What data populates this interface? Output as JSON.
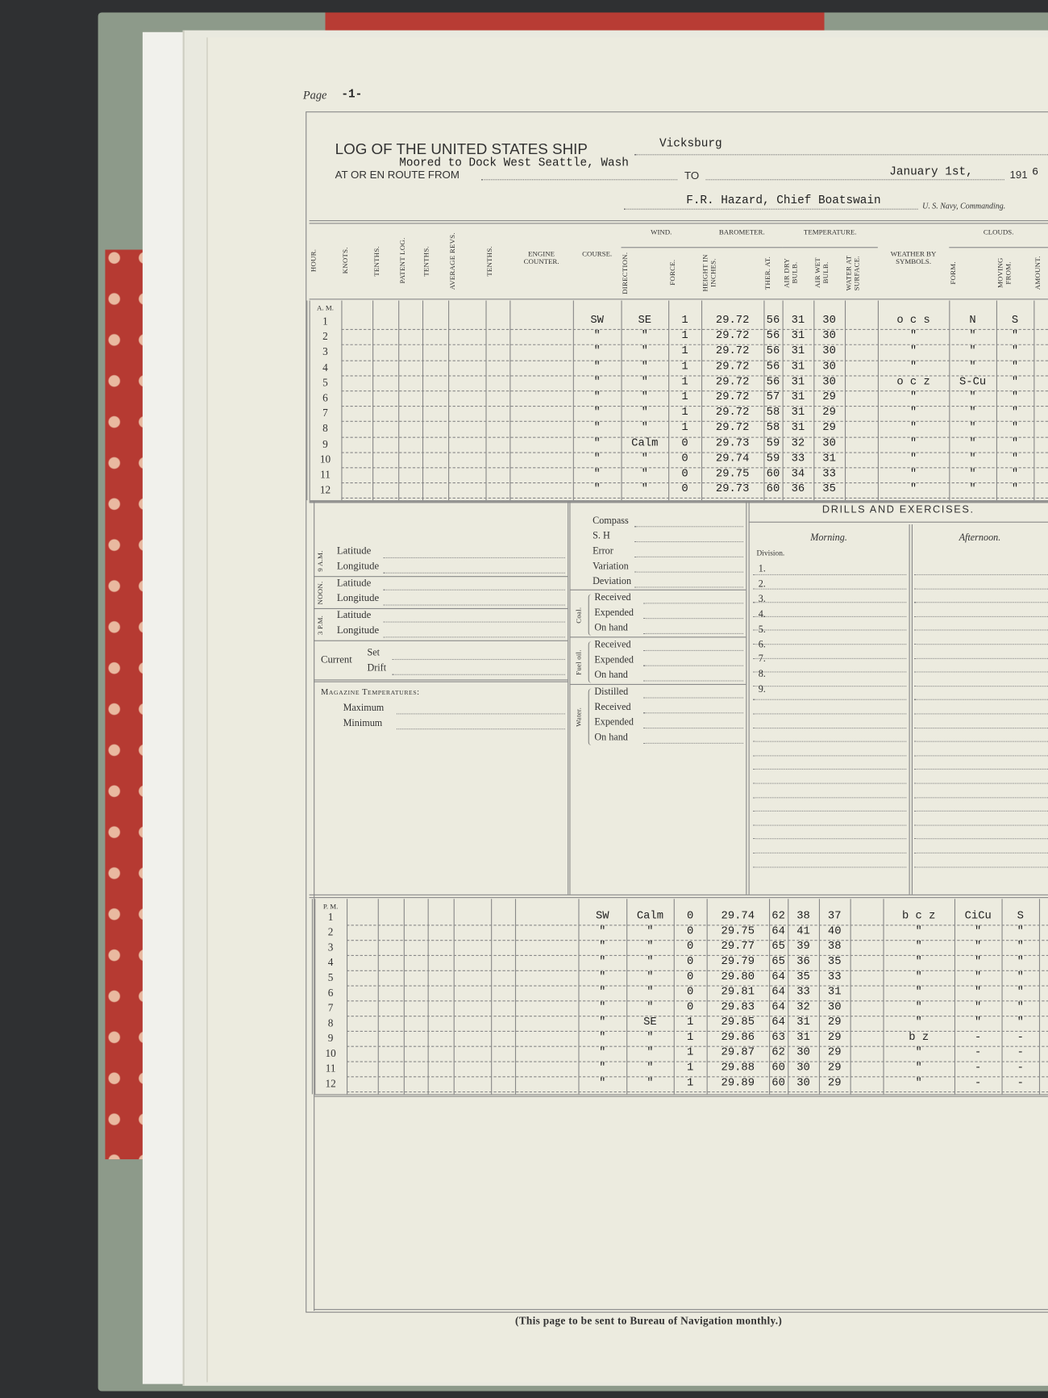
{
  "page": {
    "label": "Page",
    "number": "-1-"
  },
  "header": {
    "title": "LOG OF THE UNITED STATES SHIP",
    "ship": "Vicksburg",
    "from_label": "AT OR EN ROUTE FROM",
    "from": "Moored to Dock West Seattle, Wash",
    "to_label": "TO",
    "date": "January 1st,",
    "year_prefix": "191",
    "year_suffix": "6",
    "commander": "F.R. Hazard, Chief Boatswain",
    "commanding_label": "U. S. Navy, Commanding."
  },
  "table": {
    "columns": [
      "Hour.",
      "Knots.",
      "Tenths.",
      "Patent Log.",
      "Tenths.",
      "Average Revs.",
      "Tenths.",
      "Engine Counter.",
      "Course.",
      "Direction.",
      "Force.",
      "Height in Inches.",
      "Ther. At.",
      "Air Dry Bulb.",
      "Air Wet Bulb.",
      "Water at Surface.",
      "Weather by Symbols.",
      "Form.",
      "Moving From.",
      "Amount."
    ],
    "groups": [
      "Wind.",
      "Barometer.",
      "Temperature.",
      "Clouds."
    ]
  },
  "am": {
    "label": "A. M.",
    "hours": [
      "1",
      "2",
      "3",
      "4",
      "5",
      "6",
      "7",
      "8",
      "9",
      "10",
      "11",
      "12"
    ],
    "rows": [
      [
        "SW",
        "SE",
        "1",
        "29.72",
        "56",
        "31",
        "30",
        "o c s",
        "N",
        "S"
      ],
      [
        "\"",
        "\"",
        "1",
        "29.72",
        "56",
        "31",
        "30",
        "\"",
        "\"",
        "\""
      ],
      [
        "\"",
        "\"",
        "1",
        "29.72",
        "56",
        "31",
        "30",
        "\"",
        "\"",
        "\""
      ],
      [
        "\"",
        "\"",
        "1",
        "29.72",
        "56",
        "31",
        "30",
        "\"",
        "\"",
        "\""
      ],
      [
        "\"",
        "\"",
        "1",
        "29.72",
        "56",
        "31",
        "30",
        "o c z",
        "S-Cu",
        "\""
      ],
      [
        "\"",
        "\"",
        "1",
        "29.72",
        "57",
        "31",
        "29",
        "\"",
        "\"",
        "\""
      ],
      [
        "\"",
        "\"",
        "1",
        "29.72",
        "58",
        "31",
        "29",
        "\"",
        "\"",
        "\""
      ],
      [
        "\"",
        "\"",
        "1",
        "29.72",
        "58",
        "31",
        "29",
        "\"",
        "\"",
        "\""
      ],
      [
        "\"",
        "Calm",
        "0",
        "29.73",
        "59",
        "32",
        "30",
        "\"",
        "\"",
        "\""
      ],
      [
        "\"",
        "\"",
        "0",
        "29.74",
        "59",
        "33",
        "31",
        "\"",
        "\"",
        "\""
      ],
      [
        "\"",
        "\"",
        "0",
        "29.75",
        "60",
        "34",
        "33",
        "\"",
        "\"",
        "\""
      ],
      [
        "\"",
        "\"",
        "0",
        "29.73",
        "60",
        "36",
        "35",
        "\"",
        "\"",
        "\""
      ]
    ]
  },
  "pm": {
    "label": "P. M.",
    "hours": [
      "1",
      "2",
      "3",
      "4",
      "5",
      "6",
      "7",
      "8",
      "9",
      "10",
      "11",
      "12"
    ],
    "rows": [
      [
        "SW",
        "Calm",
        "0",
        "29.74",
        "62",
        "38",
        "37",
        "b c z",
        "CiCu",
        "S"
      ],
      [
        "\"",
        "\"",
        "0",
        "29.75",
        "64",
        "41",
        "40",
        "\"",
        "\"",
        "\""
      ],
      [
        "\"",
        "\"",
        "0",
        "29.77",
        "65",
        "39",
        "38",
        "\"",
        "\"",
        "\""
      ],
      [
        "\"",
        "\"",
        "0",
        "29.79",
        "65",
        "36",
        "35",
        "\"",
        "\"",
        "\""
      ],
      [
        "\"",
        "\"",
        "0",
        "29.80",
        "64",
        "35",
        "33",
        "\"",
        "\"",
        "\""
      ],
      [
        "\"",
        "\"",
        "0",
        "29.81",
        "64",
        "33",
        "31",
        "\"",
        "\"",
        "\""
      ],
      [
        "\"",
        "\"",
        "0",
        "29.83",
        "64",
        "32",
        "30",
        "\"",
        "\"",
        "\""
      ],
      [
        "\"",
        "SE",
        "1",
        "29.85",
        "64",
        "31",
        "29",
        "\"",
        "\"",
        "\""
      ],
      [
        "\"",
        "\"",
        "1",
        "29.86",
        "63",
        "31",
        "29",
        "b z",
        "-",
        "-"
      ],
      [
        "\"",
        "\"",
        "1",
        "29.87",
        "62",
        "30",
        "29",
        "\"",
        "-",
        "-"
      ],
      [
        "\"",
        "\"",
        "1",
        "29.88",
        "60",
        "30",
        "29",
        "\"",
        "-",
        "-"
      ],
      [
        "\"",
        "\"",
        "1",
        "29.89",
        "60",
        "30",
        "29",
        "\"",
        "-",
        "-"
      ]
    ]
  },
  "position": {
    "groups": [
      {
        "label": "9 a.m.",
        "fields": [
          "Latitude",
          "Longitude"
        ]
      },
      {
        "label": "Noon.",
        "fields": [
          "Latitude",
          "Longitude"
        ]
      },
      {
        "label": "3 p.m.",
        "fields": [
          "Latitude",
          "Longitude"
        ]
      }
    ],
    "current": {
      "label": "Current",
      "fields": [
        "Set",
        "Drift"
      ]
    },
    "magazine": {
      "label": "Magazine Temperatures:",
      "fields": [
        "Maximum",
        "Minimum"
      ]
    }
  },
  "compass": [
    "Compass",
    "S. H",
    "Error",
    "Variation",
    "Deviation"
  ],
  "supplies": [
    {
      "label": "Coal.",
      "fields": [
        "Received",
        "Expended",
        "On hand"
      ]
    },
    {
      "label": "Fuel oil.",
      "fields": [
        "Received",
        "Expended",
        "On hand"
      ]
    },
    {
      "label": "Water.",
      "fields": [
        "Distilled",
        "Received",
        "Expended",
        "On hand"
      ]
    }
  ],
  "drills": {
    "title": "DRILLS AND EXERCISES.",
    "morning": "Morning.",
    "afternoon": "Afternoon.",
    "division": "Division.",
    "numbers": [
      "1.",
      "2.",
      "3.",
      "4.",
      "5.",
      "6.",
      "7.",
      "8.",
      "9."
    ]
  },
  "footer": "(This page to be sent to Bureau of Navigation monthly.)"
}
